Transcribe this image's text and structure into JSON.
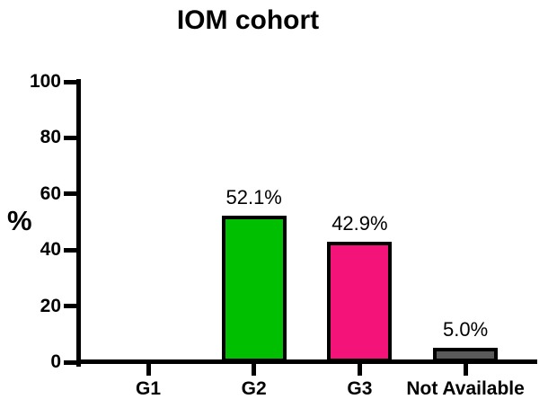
{
  "title": "IOM cohort",
  "chart_data": {
    "type": "bar",
    "title": "IOM cohort",
    "xlabel": "",
    "ylabel": "%",
    "categories": [
      "G1",
      "G2",
      "G3",
      "Not Available"
    ],
    "values": [
      0,
      52.1,
      42.9,
      5.0
    ],
    "value_labels": [
      "",
      "52.1%",
      "42.9%",
      "5.0%"
    ],
    "bar_colors": [
      null,
      "#00BE00",
      "#F31379",
      "#5A5A5A"
    ],
    "bar_border_color": "#000000",
    "axis_color": "#000000",
    "yticks": [
      0,
      20,
      40,
      60,
      80,
      100
    ],
    "ytick_labels": [
      "0",
      "20",
      "40",
      "60",
      "80",
      "100"
    ],
    "ylim": [
      0,
      100
    ],
    "grid": false,
    "legend": "none"
  }
}
